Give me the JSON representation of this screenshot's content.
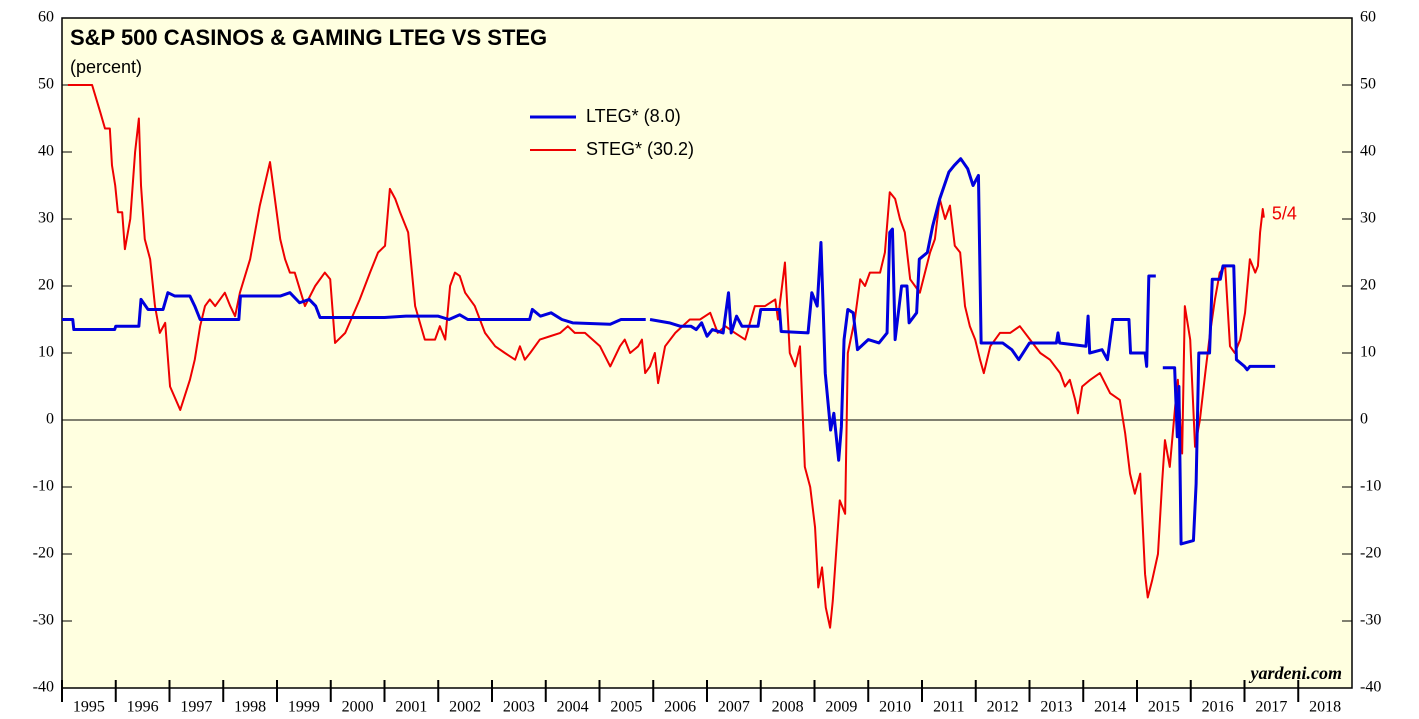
{
  "chart_data": {
    "type": "line",
    "title": "S&P 500 CASINOS & GAMING LTEG VS STEG",
    "subtitle": "(percent)",
    "source": "yardeni.com",
    "annotation": "5/4",
    "annotation_color": "#ee0000",
    "xlim": [
      1995,
      2019
    ],
    "xticks": [
      1995,
      1996,
      1997,
      1998,
      1999,
      2000,
      2001,
      2002,
      2003,
      2004,
      2005,
      2006,
      2007,
      2008,
      2009,
      2010,
      2011,
      2012,
      2013,
      2014,
      2015,
      2016,
      2017,
      2018
    ],
    "ylim": [
      -40,
      60
    ],
    "yticks": [
      -40,
      -30,
      -20,
      -10,
      0,
      10,
      20,
      30,
      40,
      50,
      60
    ],
    "y2lim": [
      -40,
      60
    ],
    "y2ticks": [
      -40,
      -30,
      -20,
      -10,
      0,
      10,
      20,
      30,
      40,
      50,
      60
    ],
    "reference_line": 0,
    "grid": false,
    "legend": "top-center",
    "series": [
      {
        "name": "LTEG* (8.0)",
        "color": "#0000dd",
        "x": [
          1995.0,
          1995.2,
          1995.22,
          1995.98,
          1996.0,
          1996.43,
          1996.47,
          1996.6,
          1996.88,
          1996.97,
          1997.1,
          1997.38,
          1997.47,
          1997.57,
          1998.29,
          1998.32,
          1999.06,
          1999.24,
          1999.42,
          1999.6,
          1999.72,
          1999.8,
          2001.0,
          2001.4,
          2002.0,
          2002.2,
          2002.4,
          2002.55,
          2003.7,
          2003.75,
          2003.9,
          2004.1,
          2004.3,
          2004.5,
          2005.2,
          2005.4,
          2005.86,
          2005.9,
          2005.94,
          2006.3,
          2006.5,
          2006.7,
          2006.8,
          2006.9,
          2007.0,
          2007.1,
          2007.3,
          2007.4,
          2007.45,
          2007.55,
          2007.65,
          2007.95,
          2008.0,
          2008.35,
          2008.38,
          2008.88,
          2008.95,
          2009.05,
          2009.12,
          2009.16,
          2009.2,
          2009.3,
          2009.36,
          2009.45,
          2009.5,
          2009.55,
          2009.62,
          2009.72,
          2009.8,
          2010.0,
          2010.2,
          2010.35,
          2010.4,
          2010.45,
          2010.5,
          2010.62,
          2010.72,
          2010.76,
          2010.9,
          2010.95,
          2011.1,
          2011.2,
          2011.33,
          2011.5,
          2011.6,
          2011.72,
          2011.85,
          2011.95,
          2012.05,
          2012.1,
          2012.5,
          2012.67,
          2012.8,
          2013.0,
          2013.5,
          2013.53,
          2013.56,
          2014.05,
          2014.09,
          2014.12,
          2014.35,
          2014.45,
          2014.55,
          2014.85,
          2014.88,
          2015.15,
          2015.18,
          2015.22,
          2015.35,
          2015.42,
          2015.48,
          2015.7,
          2015.75,
          2015.78,
          2015.82,
          2016.05,
          2016.1,
          2016.15,
          2016.35,
          2016.4,
          2016.55,
          2016.6,
          2016.8,
          2016.85,
          2017.0,
          2017.05,
          2017.1,
          2017.57
        ],
        "values": [
          15,
          15,
          13.5,
          13.5,
          14,
          14,
          18,
          16.5,
          16.5,
          19,
          18.5,
          18.5,
          17,
          15,
          15,
          18.5,
          18.5,
          19,
          17.5,
          18,
          17,
          15.3,
          15.3,
          15.5,
          15.5,
          15,
          15.7,
          15,
          15,
          16.5,
          15.5,
          16,
          15,
          14.5,
          14.3,
          15,
          15,
          null,
          15,
          14.5,
          14,
          14,
          13.5,
          14.5,
          12.5,
          13.5,
          13,
          19,
          13,
          15.5,
          14,
          14,
          16.5,
          16.5,
          13.2,
          13,
          19,
          17,
          26.5,
          17,
          7,
          -1.5,
          1,
          -6,
          -1,
          12,
          16.5,
          16,
          10.5,
          12,
          11.5,
          13,
          28,
          28.5,
          12,
          20,
          20,
          14.5,
          16,
          24,
          25,
          29,
          33,
          37,
          38,
          39,
          37.5,
          35,
          36.5,
          11.5,
          11.5,
          10.5,
          9,
          11.5,
          11.5,
          13,
          11.5,
          11,
          15.5,
          10,
          10.5,
          9,
          15,
          15,
          10,
          10,
          8,
          21.5,
          21.5,
          null,
          7.8,
          7.8,
          -2.5,
          5,
          -18.5,
          -18,
          -9.5,
          10,
          10,
          21,
          21,
          23,
          23,
          9,
          8,
          7.5,
          8,
          8
        ]
      },
      {
        "name": "STEG* (30.2)",
        "color": "#ee0000",
        "x": [
          1995.11,
          1995.56,
          1995.71,
          1995.8,
          1995.89,
          1995.93,
          1995.99,
          1996.04,
          1996.12,
          1996.17,
          1996.27,
          1996.36,
          1996.43,
          1996.47,
          1996.54,
          1996.64,
          1996.73,
          1996.82,
          1996.92,
          1997.01,
          1997.2,
          1997.38,
          1997.47,
          1997.57,
          1997.66,
          1997.75,
          1997.85,
          1998.03,
          1998.13,
          1998.22,
          1998.31,
          1998.5,
          1998.68,
          1998.87,
          1999.06,
          1999.15,
          1999.24,
          1999.33,
          1999.52,
          1999.71,
          1999.89,
          1999.99,
          2000.08,
          2000.27,
          2000.54,
          2000.73,
          2000.88,
          2001.01,
          2001.1,
          2001.2,
          2001.29,
          2001.44,
          2001.57,
          2001.75,
          2001.94,
          2002.03,
          2002.13,
          2002.22,
          2002.31,
          2002.4,
          2002.5,
          2002.68,
          2002.87,
          2003.06,
          2003.24,
          2003.43,
          2003.52,
          2003.61,
          2003.71,
          2003.89,
          2004.08,
          2004.27,
          2004.41,
          2004.54,
          2004.73,
          2005.01,
          2005.2,
          2005.38,
          2005.47,
          2005.57,
          2005.72,
          2005.79,
          2005.85,
          2005.94,
          2006.03,
          2006.09,
          2006.22,
          2006.41,
          2006.68,
          2006.87,
          2007.06,
          2007.2,
          2007.34,
          2007.52,
          2007.71,
          2007.89,
          2008.08,
          2008.27,
          2008.32,
          2008.45,
          2008.54,
          2008.64,
          2008.73,
          2008.82,
          2008.92,
          2009.01,
          2009.07,
          2009.14,
          2009.21,
          2009.29,
          2009.34,
          2009.47,
          2009.57,
          2009.62,
          2009.75,
          2009.85,
          2009.94,
          2010.03,
          2010.22,
          2010.31,
          2010.4,
          2010.5,
          2010.59,
          2010.68,
          2010.78,
          2010.87,
          2010.96,
          2011.15,
          2011.24,
          2011.33,
          2011.43,
          2011.52,
          2011.61,
          2011.71,
          2011.8,
          2011.89,
          2011.99,
          2012.08,
          2012.15,
          2012.27,
          2012.45,
          2012.64,
          2012.82,
          2013.01,
          2013.2,
          2013.38,
          2013.57,
          2013.66,
          2013.75,
          2013.85,
          2013.9,
          2013.98,
          2014.13,
          2014.31,
          2014.5,
          2014.68,
          2014.78,
          2014.87,
          2014.96,
          2015.06,
          2015.15,
          2015.2,
          2015.28,
          2015.39,
          2015.47,
          2015.52,
          2015.61,
          2015.71,
          2015.76,
          2015.84,
          2015.89,
          2015.99,
          2016.08,
          2016.17,
          2016.27,
          2016.36,
          2016.45,
          2016.54,
          2016.64,
          2016.73,
          2016.82,
          2016.92,
          2017.01,
          2017.1,
          2017.2,
          2017.25,
          2017.29,
          2017.34,
          2017.36
        ],
        "values": [
          50,
          50,
          46,
          43.5,
          43.5,
          38,
          35,
          31,
          31,
          25.5,
          30,
          40,
          45,
          35,
          27,
          24,
          17,
          13,
          14.5,
          5,
          1.5,
          6,
          9,
          14,
          17,
          18,
          17,
          19,
          17,
          15.5,
          19,
          24,
          32,
          38.5,
          27,
          24,
          22,
          22,
          17,
          20,
          22,
          21,
          11.5,
          13,
          18,
          22,
          25,
          26,
          34.5,
          33,
          31,
          28,
          17,
          12,
          12,
          14,
          12,
          20,
          22,
          21.5,
          19,
          17,
          13,
          11,
          10,
          9,
          11,
          9,
          10,
          12,
          12.5,
          13,
          14,
          13,
          13,
          11,
          8,
          11,
          12,
          10,
          11,
          12,
          7,
          8,
          10,
          5.5,
          11,
          13,
          15,
          15,
          16,
          13,
          14,
          13,
          12,
          17,
          17,
          18,
          15,
          23.5,
          10,
          8,
          11,
          -7,
          -10,
          -16,
          -25,
          -22,
          -28,
          -31,
          -27,
          -12,
          -14,
          10,
          15,
          21,
          20,
          22,
          22,
          25,
          34,
          33,
          30,
          28,
          21,
          20,
          19,
          25,
          27,
          33,
          30,
          32,
          26,
          25,
          17,
          14,
          12,
          9,
          7,
          11,
          13,
          13,
          14,
          12,
          10,
          9,
          7,
          5,
          6,
          3,
          1,
          5,
          6,
          7,
          4,
          3,
          -2,
          -8,
          -11,
          -8,
          -23,
          -26.5,
          -24,
          -20,
          -9,
          -3,
          -7,
          2,
          6,
          -5,
          17,
          12,
          -4,
          0,
          7,
          13,
          18,
          22,
          23,
          11,
          10,
          12,
          16,
          24,
          22,
          23,
          28,
          31.5,
          30.2
        ]
      }
    ]
  }
}
